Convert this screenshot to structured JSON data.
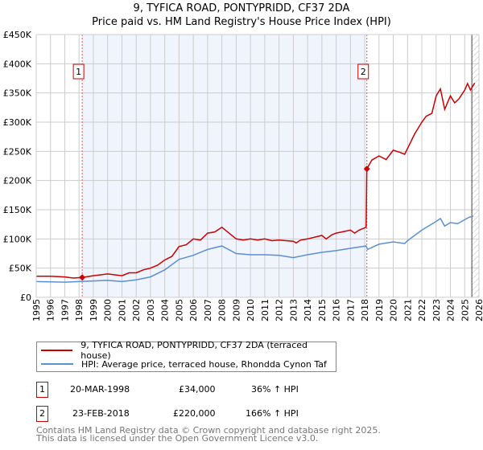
{
  "chart_data": {
    "type": "line",
    "title": "9, TYFICA ROAD, PONTYPRIDD, CF37 2DA",
    "subtitle": "Price paid vs. HM Land Registry's House Price Index (HPI)",
    "xlim": [
      1995,
      2026
    ],
    "ylim": [
      0,
      450000
    ],
    "x_ticks": [
      "1995",
      "1996",
      "1997",
      "1998",
      "1999",
      "2000",
      "2001",
      "2002",
      "2003",
      "2004",
      "2005",
      "2006",
      "2007",
      "2008",
      "2009",
      "2010",
      "2011",
      "2012",
      "2013",
      "2014",
      "2015",
      "2016",
      "2017",
      "2018",
      "2019",
      "2020",
      "2021",
      "2022",
      "2023",
      "2024",
      "2025",
      "2026"
    ],
    "y_ticks": [
      {
        "v": 0,
        "label": "£0"
      },
      {
        "v": 50000,
        "label": "£50K"
      },
      {
        "v": 100000,
        "label": "£100K"
      },
      {
        "v": 150000,
        "label": "£150K"
      },
      {
        "v": 200000,
        "label": "£200K"
      },
      {
        "v": 250000,
        "label": "£250K"
      },
      {
        "v": 300000,
        "label": "£300K"
      },
      {
        "v": 350000,
        "label": "£350K"
      },
      {
        "v": 400000,
        "label": "£400K"
      },
      {
        "v": 450000,
        "label": "£450K"
      }
    ],
    "grid": true,
    "shaded_range": [
      1998.22,
      2018.15
    ],
    "hatched_from": 2025.5,
    "series": [
      {
        "name": "9, TYFICA ROAD, PONTYPRIDD, CF37 2DA (terraced house)",
        "color": "#cc0000",
        "x": [
          1995,
          1996,
          1997,
          1997.6,
          1998.22,
          1999,
          2000,
          2001,
          2001.5,
          2002,
          2002.5,
          2003,
          2003.5,
          2004,
          2004.5,
          2005,
          2005.5,
          2006,
          2006.5,
          2007,
          2007.5,
          2008,
          2008.5,
          2009,
          2009.5,
          2010,
          2010.5,
          2011,
          2011.5,
          2012,
          2013,
          2013.2,
          2013.5,
          2014,
          2015,
          2015.3,
          2015.7,
          2016,
          2017,
          2017.3,
          2017.6,
          2018.1,
          2018.15,
          2018.5,
          2019,
          2019.5,
          2020,
          2020.5,
          2020.8,
          2021,
          2021.5,
          2022,
          2022.3,
          2022.7,
          2023,
          2023.3,
          2023.6,
          2024,
          2024.3,
          2024.6,
          2025,
          2025.2,
          2025.4,
          2025.7
        ],
        "y": [
          36000,
          36000,
          35000,
          33000,
          34000,
          37000,
          40000,
          37000,
          42000,
          42000,
          47000,
          50000,
          55000,
          64000,
          70000,
          87000,
          90000,
          100000,
          98000,
          110000,
          112000,
          120000,
          110000,
          100000,
          98000,
          100000,
          98000,
          100000,
          97000,
          98000,
          96000,
          93000,
          98000,
          100000,
          106000,
          100000,
          107000,
          110000,
          115000,
          110000,
          115000,
          120000,
          220000,
          235000,
          242000,
          236000,
          252000,
          248000,
          245000,
          255000,
          280000,
          300000,
          310000,
          315000,
          345000,
          357000,
          322000,
          345000,
          333000,
          340000,
          355000,
          366000,
          355000,
          367000
        ]
      },
      {
        "name": "HPI: Average price, terraced house, Rhondda Cynon Taf",
        "color": "#5b8fd4",
        "x": [
          1995,
          1997,
          1998,
          2000,
          2001,
          2002,
          2003,
          2004,
          2005,
          2006,
          2007,
          2008,
          2009,
          2010,
          2011,
          2012,
          2013,
          2014,
          2015,
          2016,
          2017,
          2018.1,
          2018.2,
          2019,
          2020,
          2020.8,
          2021,
          2022,
          2023,
          2023.3,
          2023.6,
          2024,
          2024.5,
          2025,
          2025.3,
          2025.6
        ],
        "y": [
          27000,
          26000,
          27000,
          29000,
          27000,
          30000,
          35000,
          47000,
          65000,
          72000,
          82000,
          88000,
          75000,
          73000,
          73000,
          72000,
          68000,
          73000,
          77000,
          80000,
          84000,
          88000,
          82000,
          91000,
          95000,
          92000,
          97000,
          115000,
          130000,
          135000,
          122000,
          128000,
          126000,
          133000,
          137000,
          139000
        ]
      }
    ],
    "sales": [
      {
        "id": "1",
        "x": 1998.22,
        "y": 34000
      },
      {
        "id": "2",
        "x": 2018.15,
        "y": 220000
      }
    ]
  },
  "legend": [
    "9, TYFICA ROAD, PONTYPRIDD, CF37 2DA (terraced house)",
    "HPI: Average price, terraced house, Rhondda Cynon Taf"
  ],
  "transactions": [
    {
      "id": "1",
      "date": "20-MAR-1998",
      "price": "£34,000",
      "hpi": "36% ↑ HPI"
    },
    {
      "id": "2",
      "date": "23-FEB-2018",
      "price": "£220,000",
      "hpi": "166% ↑ HPI"
    }
  ],
  "footer": [
    "Contains HM Land Registry data © Crown copyright and database right 2025.",
    "This data is licensed under the Open Government Licence v3.0."
  ]
}
